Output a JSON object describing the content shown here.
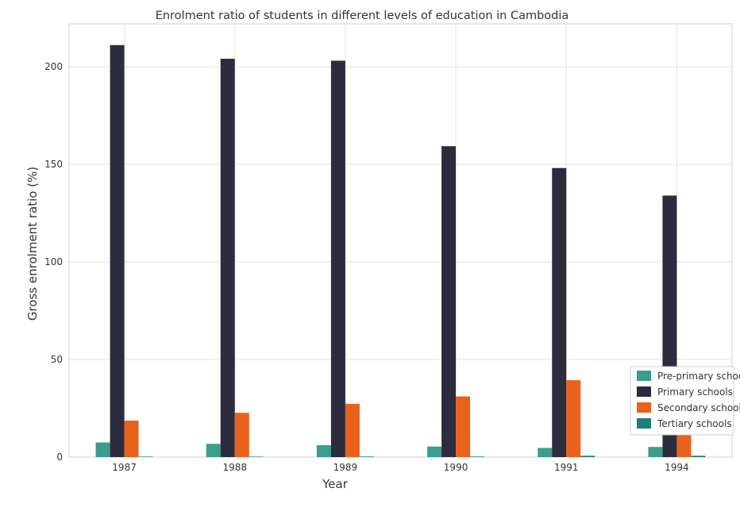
{
  "chart_data": {
    "type": "bar",
    "title": "Enrolment ratio of students in different levels of education in Cambodia",
    "xlabel": "Year",
    "ylabel": "Gross enrolment ratio (%)",
    "categories": [
      "1987",
      "1988",
      "1989",
      "1990",
      "1991",
      "1994"
    ],
    "ylim": [
      0,
      222
    ],
    "yticks": [
      0,
      50,
      100,
      150,
      200
    ],
    "grid": true,
    "legend_position": "bottom-right",
    "series": [
      {
        "name": "Pre-primary schools",
        "color": "#3a9e8f",
        "values": [
          7.5,
          6.8,
          6.1,
          5.4,
          4.7,
          5.2
        ]
      },
      {
        "name": "Primary schools",
        "color": "#2c2c3e",
        "values": [
          211.1,
          204.1,
          203.1,
          159.3,
          148.1,
          134.0
        ]
      },
      {
        "name": "Secondary schools",
        "color": "#e8621c",
        "values": [
          18.7,
          22.7,
          27.3,
          31.1,
          39.4,
          42.4
        ]
      },
      {
        "name": "Tertiary schools",
        "color": "#1a7f7a",
        "values": [
          0.15,
          0.2,
          0.3,
          0.3,
          0.7,
          0.7
        ]
      }
    ]
  }
}
